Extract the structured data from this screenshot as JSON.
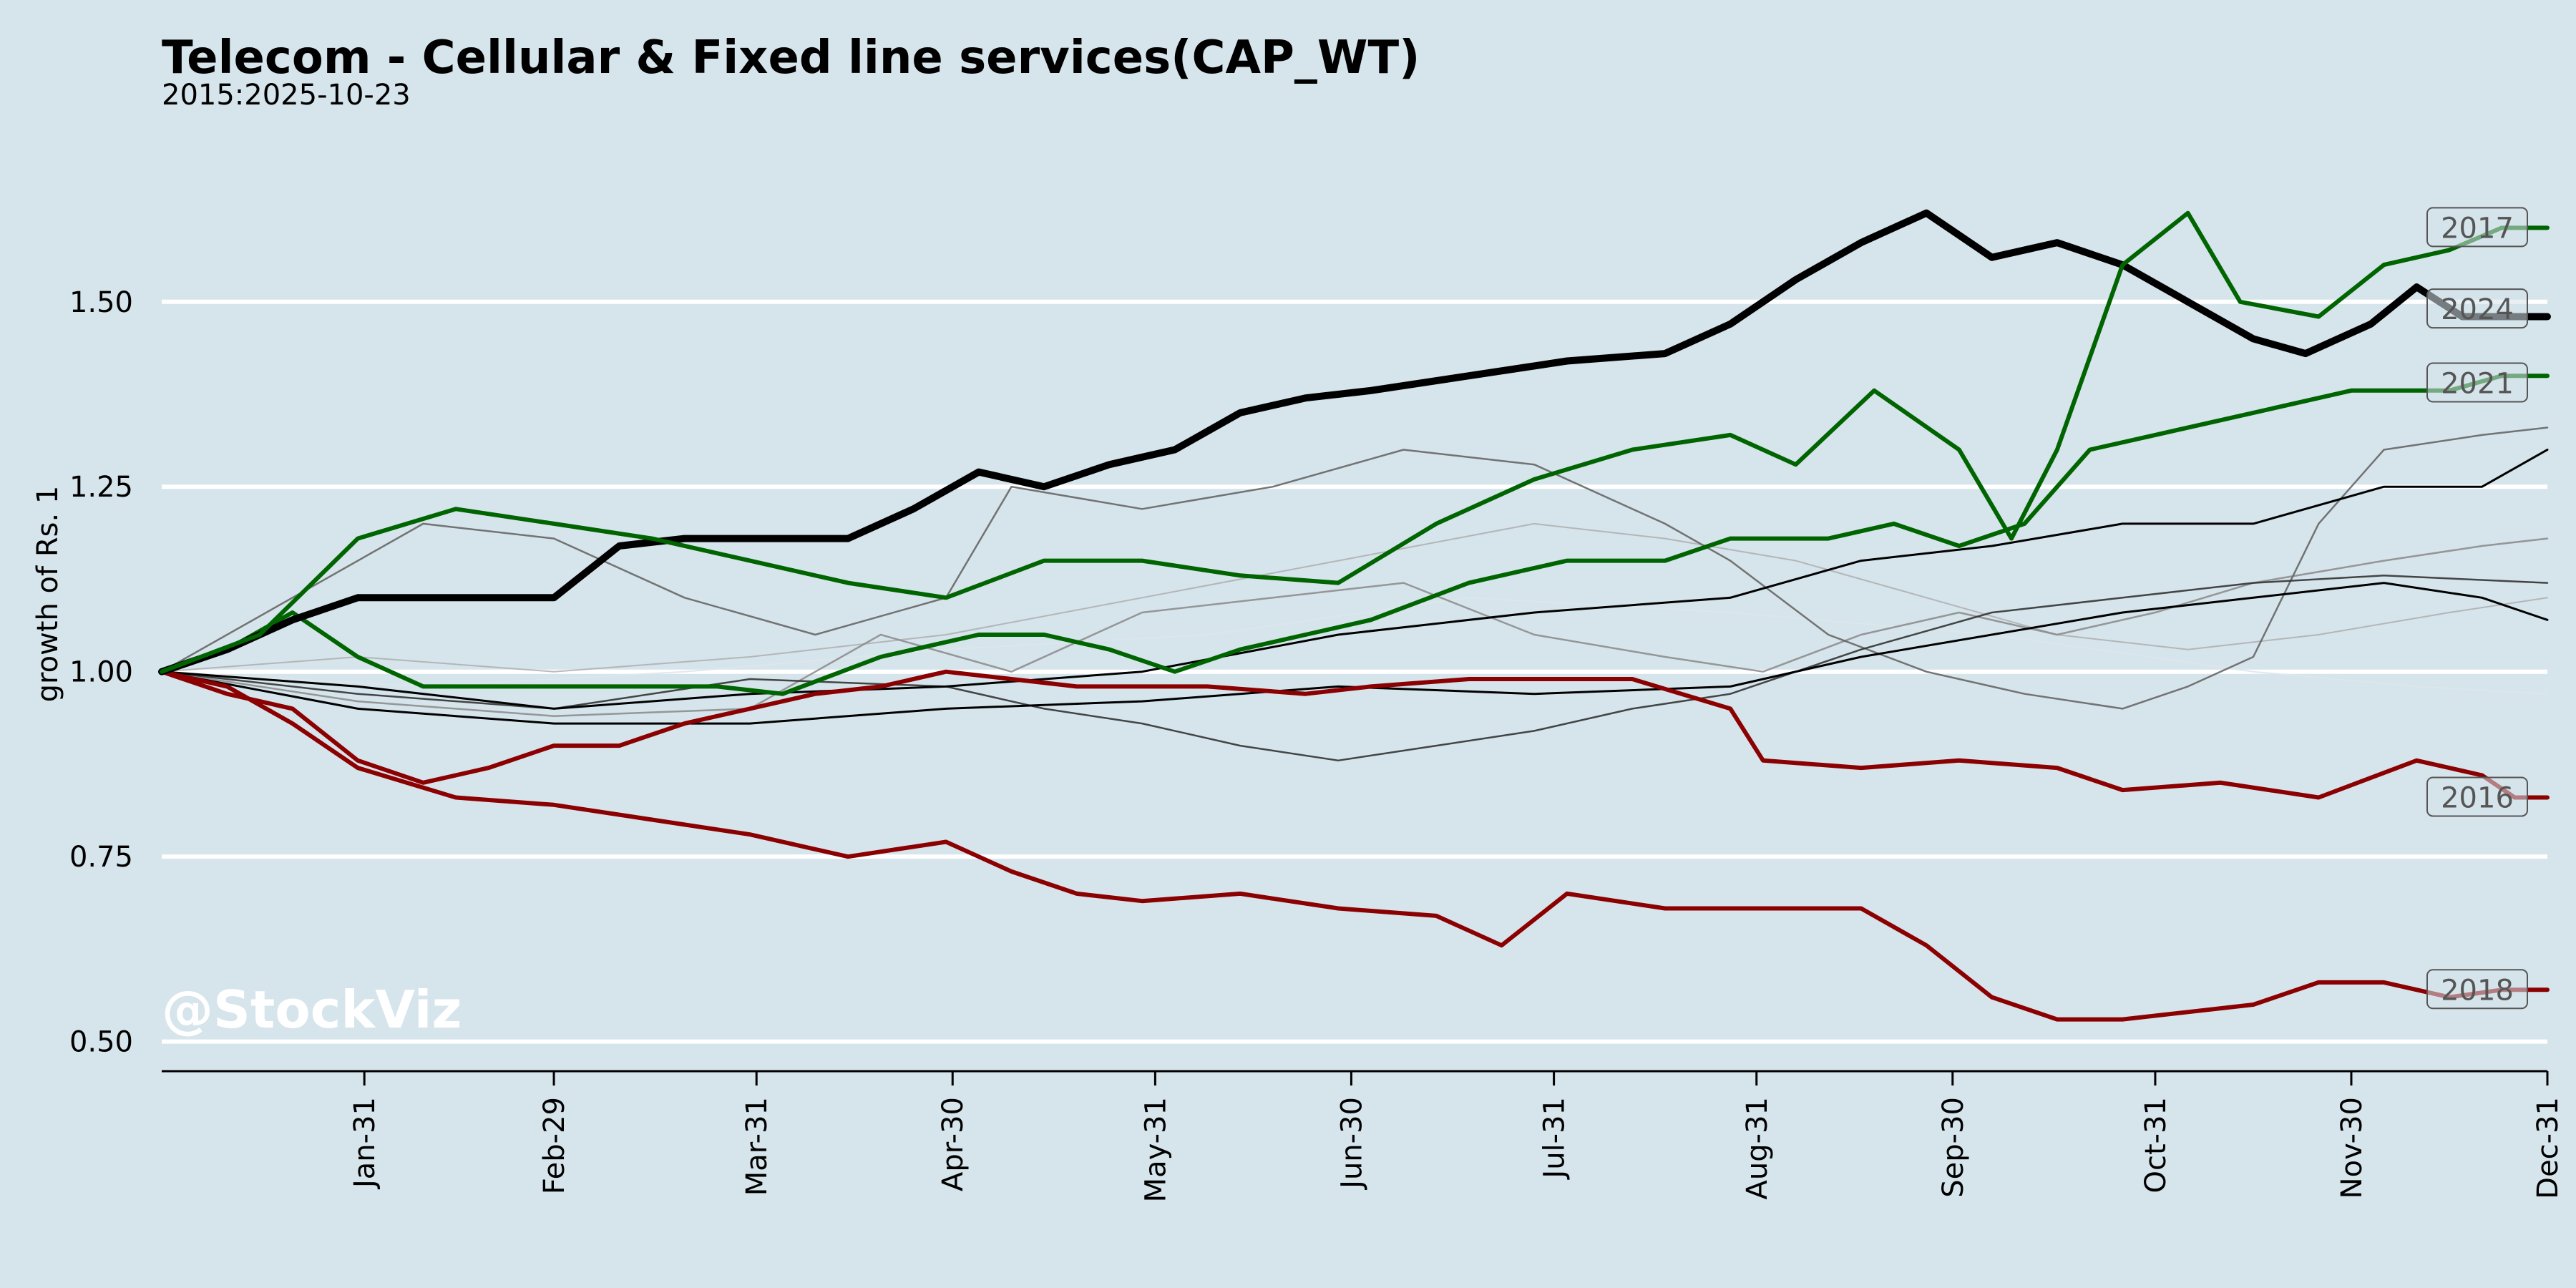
{
  "chart_data": {
    "type": "line",
    "title": "Telecom - Cellular & Fixed line services(CAP_WT)",
    "subtitle": "2015:2025-10-23",
    "ylabel": "growth of Rs. 1",
    "watermark": "@StockViz",
    "ylim": [
      0.46,
      1.7
    ],
    "yticks": [
      0.5,
      0.75,
      1.0,
      1.25,
      1.5
    ],
    "ytick_labels": [
      "0.50",
      "0.75",
      "1.00",
      "1.25",
      "1.50"
    ],
    "x_range": [
      0,
      365
    ],
    "xticks": [
      31,
      60,
      91,
      121,
      152,
      182,
      213,
      244,
      274,
      305,
      335,
      365
    ],
    "xtick_labels": [
      "Jan-31",
      "Feb-29",
      "Mar-31",
      "Apr-30",
      "May-31",
      "Jun-30",
      "Jul-31",
      "Aug-31",
      "Sep-30",
      "Oct-31",
      "Nov-30",
      "Dec-31"
    ],
    "grid": "horizontal",
    "series": [
      {
        "name": "2017",
        "color": "#006400",
        "width": 6,
        "opacity": 1,
        "points": [
          [
            0,
            1.0
          ],
          [
            15,
            1.05
          ],
          [
            30,
            1.18
          ],
          [
            45,
            1.22
          ],
          [
            60,
            1.2
          ],
          [
            75,
            1.18
          ],
          [
            90,
            1.15
          ],
          [
            105,
            1.12
          ],
          [
            120,
            1.1
          ],
          [
            135,
            1.15
          ],
          [
            150,
            1.15
          ],
          [
            165,
            1.13
          ],
          [
            180,
            1.12
          ],
          [
            195,
            1.2
          ],
          [
            210,
            1.26
          ],
          [
            225,
            1.3
          ],
          [
            240,
            1.32
          ],
          [
            250,
            1.28
          ],
          [
            262,
            1.38
          ],
          [
            275,
            1.3
          ],
          [
            283,
            1.18
          ],
          [
            290,
            1.3
          ],
          [
            300,
            1.55
          ],
          [
            310,
            1.62
          ],
          [
            318,
            1.5
          ],
          [
            330,
            1.48
          ],
          [
            340,
            1.55
          ],
          [
            350,
            1.57
          ],
          [
            358,
            1.6
          ],
          [
            365,
            1.6
          ]
        ]
      },
      {
        "name": "2024",
        "color": "#000000",
        "width": 10,
        "opacity": 1,
        "points": [
          [
            0,
            1.0
          ],
          [
            10,
            1.03
          ],
          [
            20,
            1.07
          ],
          [
            30,
            1.1
          ],
          [
            45,
            1.1
          ],
          [
            60,
            1.1
          ],
          [
            70,
            1.17
          ],
          [
            80,
            1.18
          ],
          [
            95,
            1.18
          ],
          [
            105,
            1.18
          ],
          [
            115,
            1.22
          ],
          [
            125,
            1.27
          ],
          [
            135,
            1.25
          ],
          [
            145,
            1.28
          ],
          [
            155,
            1.3
          ],
          [
            165,
            1.35
          ],
          [
            175,
            1.37
          ],
          [
            185,
            1.38
          ],
          [
            200,
            1.4
          ],
          [
            215,
            1.42
          ],
          [
            230,
            1.43
          ],
          [
            240,
            1.47
          ],
          [
            250,
            1.53
          ],
          [
            260,
            1.58
          ],
          [
            270,
            1.62
          ],
          [
            280,
            1.56
          ],
          [
            290,
            1.58
          ],
          [
            300,
            1.55
          ],
          [
            310,
            1.5
          ],
          [
            320,
            1.45
          ],
          [
            328,
            1.43
          ],
          [
            338,
            1.47
          ],
          [
            345,
            1.52
          ],
          [
            352,
            1.48
          ],
          [
            365,
            1.48
          ]
        ]
      },
      {
        "name": "2021",
        "color": "#006400",
        "width": 6,
        "opacity": 1,
        "points": [
          [
            0,
            1.0
          ],
          [
            10,
            1.03
          ],
          [
            20,
            1.08
          ],
          [
            30,
            1.02
          ],
          [
            40,
            0.98
          ],
          [
            60,
            0.98
          ],
          [
            75,
            0.98
          ],
          [
            85,
            0.98
          ],
          [
            95,
            0.97
          ],
          [
            110,
            1.02
          ],
          [
            125,
            1.05
          ],
          [
            135,
            1.05
          ],
          [
            145,
            1.03
          ],
          [
            155,
            1.0
          ],
          [
            165,
            1.03
          ],
          [
            175,
            1.05
          ],
          [
            185,
            1.07
          ],
          [
            200,
            1.12
          ],
          [
            215,
            1.15
          ],
          [
            230,
            1.15
          ],
          [
            240,
            1.18
          ],
          [
            255,
            1.18
          ],
          [
            265,
            1.2
          ],
          [
            275,
            1.17
          ],
          [
            285,
            1.2
          ],
          [
            295,
            1.3
          ],
          [
            305,
            1.32
          ],
          [
            320,
            1.35
          ],
          [
            335,
            1.38
          ],
          [
            350,
            1.38
          ],
          [
            358,
            1.4
          ],
          [
            365,
            1.4
          ]
        ]
      },
      {
        "name": "2016",
        "color": "#8b0000",
        "width": 6,
        "opacity": 1,
        "points": [
          [
            0,
            1.0
          ],
          [
            10,
            0.97
          ],
          [
            20,
            0.95
          ],
          [
            30,
            0.88
          ],
          [
            40,
            0.85
          ],
          [
            50,
            0.87
          ],
          [
            60,
            0.9
          ],
          [
            70,
            0.9
          ],
          [
            80,
            0.93
          ],
          [
            90,
            0.95
          ],
          [
            100,
            0.97
          ],
          [
            110,
            0.98
          ],
          [
            120,
            1.0
          ],
          [
            130,
            0.99
          ],
          [
            140,
            0.98
          ],
          [
            150,
            0.98
          ],
          [
            160,
            0.98
          ],
          [
            175,
            0.97
          ],
          [
            185,
            0.98
          ],
          [
            200,
            0.99
          ],
          [
            215,
            0.99
          ],
          [
            225,
            0.99
          ],
          [
            240,
            0.95
          ],
          [
            245,
            0.88
          ],
          [
            260,
            0.87
          ],
          [
            275,
            0.88
          ],
          [
            290,
            0.87
          ],
          [
            300,
            0.84
          ],
          [
            315,
            0.85
          ],
          [
            330,
            0.83
          ],
          [
            345,
            0.88
          ],
          [
            355,
            0.86
          ],
          [
            360,
            0.83
          ],
          [
            365,
            0.83
          ]
        ]
      },
      {
        "name": "2018",
        "color": "#8b0000",
        "width": 6,
        "opacity": 1,
        "points": [
          [
            0,
            1.0
          ],
          [
            10,
            0.98
          ],
          [
            20,
            0.93
          ],
          [
            30,
            0.87
          ],
          [
            45,
            0.83
          ],
          [
            60,
            0.82
          ],
          [
            75,
            0.8
          ],
          [
            90,
            0.78
          ],
          [
            105,
            0.75
          ],
          [
            120,
            0.77
          ],
          [
            130,
            0.73
          ],
          [
            140,
            0.7
          ],
          [
            150,
            0.69
          ],
          [
            165,
            0.7
          ],
          [
            180,
            0.68
          ],
          [
            195,
            0.67
          ],
          [
            205,
            0.63
          ],
          [
            215,
            0.7
          ],
          [
            230,
            0.68
          ],
          [
            245,
            0.68
          ],
          [
            260,
            0.68
          ],
          [
            270,
            0.63
          ],
          [
            280,
            0.56
          ],
          [
            290,
            0.53
          ],
          [
            300,
            0.53
          ],
          [
            310,
            0.54
          ],
          [
            320,
            0.55
          ],
          [
            330,
            0.58
          ],
          [
            340,
            0.58
          ],
          [
            350,
            0.56
          ],
          [
            358,
            0.57
          ],
          [
            365,
            0.57
          ]
        ]
      },
      {
        "name": "",
        "color": "#000000",
        "width": 3,
        "opacity": 1,
        "points": [
          [
            0,
            1.0
          ],
          [
            30,
            0.98
          ],
          [
            60,
            0.95
          ],
          [
            90,
            0.97
          ],
          [
            120,
            0.98
          ],
          [
            150,
            1.0
          ],
          [
            180,
            1.05
          ],
          [
            210,
            1.08
          ],
          [
            240,
            1.1
          ],
          [
            260,
            1.15
          ],
          [
            280,
            1.17
          ],
          [
            300,
            1.2
          ],
          [
            320,
            1.2
          ],
          [
            340,
            1.25
          ],
          [
            355,
            1.25
          ],
          [
            365,
            1.3
          ]
        ]
      },
      {
        "name": "",
        "color": "#000000",
        "width": 3,
        "opacity": 1,
        "points": [
          [
            0,
            1.0
          ],
          [
            30,
            0.95
          ],
          [
            60,
            0.93
          ],
          [
            90,
            0.93
          ],
          [
            120,
            0.95
          ],
          [
            150,
            0.96
          ],
          [
            180,
            0.98
          ],
          [
            210,
            0.97
          ],
          [
            240,
            0.98
          ],
          [
            260,
            1.02
          ],
          [
            280,
            1.05
          ],
          [
            300,
            1.08
          ],
          [
            320,
            1.1
          ],
          [
            340,
            1.12
          ],
          [
            355,
            1.1
          ],
          [
            365,
            1.07
          ]
        ]
      },
      {
        "name": "",
        "color": "#333333",
        "width": 2.5,
        "opacity": 0.9,
        "points": [
          [
            0,
            1.0
          ],
          [
            30,
            0.97
          ],
          [
            60,
            0.95
          ],
          [
            90,
            0.99
          ],
          [
            120,
            0.98
          ],
          [
            135,
            0.95
          ],
          [
            150,
            0.93
          ],
          [
            165,
            0.9
          ],
          [
            180,
            0.88
          ],
          [
            195,
            0.9
          ],
          [
            210,
            0.92
          ],
          [
            225,
            0.95
          ],
          [
            240,
            0.97
          ],
          [
            260,
            1.03
          ],
          [
            280,
            1.08
          ],
          [
            300,
            1.1
          ],
          [
            320,
            1.12
          ],
          [
            340,
            1.13
          ],
          [
            365,
            1.12
          ]
        ]
      },
      {
        "name": "",
        "color": "#666666",
        "width": 2.5,
        "opacity": 0.9,
        "points": [
          [
            0,
            1.0
          ],
          [
            20,
            1.1
          ],
          [
            40,
            1.2
          ],
          [
            60,
            1.18
          ],
          [
            80,
            1.1
          ],
          [
            100,
            1.05
          ],
          [
            120,
            1.1
          ],
          [
            130,
            1.25
          ],
          [
            150,
            1.22
          ],
          [
            170,
            1.25
          ],
          [
            190,
            1.3
          ],
          [
            210,
            1.28
          ],
          [
            230,
            1.2
          ],
          [
            240,
            1.15
          ],
          [
            255,
            1.05
          ],
          [
            270,
            1.0
          ],
          [
            285,
            0.97
          ],
          [
            300,
            0.95
          ],
          [
            310,
            0.98
          ],
          [
            320,
            1.02
          ],
          [
            330,
            1.2
          ],
          [
            340,
            1.3
          ],
          [
            355,
            1.32
          ],
          [
            365,
            1.33
          ]
        ]
      },
      {
        "name": "",
        "color": "#888888",
        "width": 2.5,
        "opacity": 0.85,
        "points": [
          [
            0,
            1.0
          ],
          [
            30,
            0.96
          ],
          [
            60,
            0.94
          ],
          [
            90,
            0.95
          ],
          [
            110,
            1.05
          ],
          [
            130,
            1.0
          ],
          [
            150,
            1.08
          ],
          [
            170,
            1.1
          ],
          [
            190,
            1.12
          ],
          [
            210,
            1.05
          ],
          [
            230,
            1.02
          ],
          [
            245,
            1.0
          ],
          [
            260,
            1.05
          ],
          [
            275,
            1.08
          ],
          [
            290,
            1.05
          ],
          [
            305,
            1.08
          ],
          [
            320,
            1.12
          ],
          [
            340,
            1.15
          ],
          [
            355,
            1.17
          ],
          [
            365,
            1.18
          ]
        ]
      },
      {
        "name": "",
        "color": "#aaaaaa",
        "width": 2,
        "opacity": 0.8,
        "points": [
          [
            0,
            1.0
          ],
          [
            30,
            1.02
          ],
          [
            60,
            1.0
          ],
          [
            90,
            1.02
          ],
          [
            120,
            1.05
          ],
          [
            150,
            1.1
          ],
          [
            180,
            1.15
          ],
          [
            210,
            1.2
          ],
          [
            230,
            1.18
          ],
          [
            250,
            1.15
          ],
          [
            270,
            1.1
          ],
          [
            290,
            1.05
          ],
          [
            310,
            1.03
          ],
          [
            330,
            1.05
          ],
          [
            350,
            1.08
          ],
          [
            365,
            1.1
          ]
        ]
      },
      {
        "name": "",
        "color": "#dde7ec",
        "width": 2,
        "opacity": 0.9,
        "points": [
          [
            0,
            1.0
          ],
          [
            40,
            0.98
          ],
          [
            80,
            1.0
          ],
          [
            120,
            1.03
          ],
          [
            160,
            1.05
          ],
          [
            200,
            1.1
          ],
          [
            240,
            1.08
          ],
          [
            280,
            1.05
          ],
          [
            320,
            1.0
          ],
          [
            345,
            0.98
          ],
          [
            365,
            0.97
          ]
        ]
      }
    ],
    "end_labels": [
      {
        "text": "2017",
        "y": 1.6
      },
      {
        "text": "2024",
        "y": 1.49
      },
      {
        "text": "2021",
        "y": 1.39
      },
      {
        "text": "2016",
        "y": 0.83
      },
      {
        "text": "2018",
        "y": 0.57
      }
    ]
  }
}
